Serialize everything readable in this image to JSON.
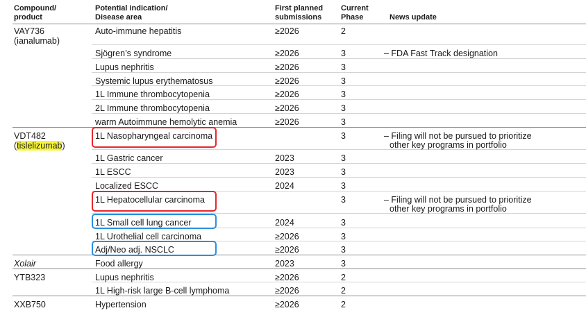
{
  "header": {
    "col1": [
      "Compound/",
      "product"
    ],
    "col2": [
      "Potential indication/",
      "Disease area"
    ],
    "col3": [
      "First planned",
      "submissions"
    ],
    "col4": [
      "Current",
      "Phase"
    ],
    "col5": "News update"
  },
  "rows": [
    {
      "compound": [
        "VAY736",
        "(ianalumab)"
      ],
      "indication": "Auto-immune hepatitis",
      "submission": "≥2026",
      "phase": "2",
      "news": []
    },
    {
      "indication": "Sjögren’s syndrome",
      "submission": "≥2026",
      "phase": "3",
      "news": [
        "– FDA Fast Track designation"
      ]
    },
    {
      "indication": "Lupus nephritis",
      "submission": "≥2026",
      "phase": "3",
      "news": []
    },
    {
      "indication": "Systemic lupus erythematosus",
      "submission": "≥2026",
      "phase": "3",
      "news": []
    },
    {
      "indication": "1L Immune thrombocytopenia",
      "submission": "≥2026",
      "phase": "3",
      "news": []
    },
    {
      "indication": "2L Immune thrombocytopenia",
      "submission": "≥2026",
      "phase": "3",
      "news": []
    },
    {
      "indication": "warm Autoimmune hemolytic anemia",
      "submission": "≥2026",
      "phase": "3",
      "news": []
    },
    {
      "compound": [
        "VDT482",
        "(tislelizumab)"
      ],
      "indication": "1L Nasopharyngeal carcinoma",
      "submission": "",
      "phase": "3",
      "news": [
        "– Filing will not be pursued to prioritize",
        "other key programs in portfolio"
      ]
    },
    {
      "indication": "1L Gastric cancer",
      "submission": "2023",
      "phase": "3",
      "news": []
    },
    {
      "indication": "1L ESCC",
      "submission": "2023",
      "phase": "3",
      "news": []
    },
    {
      "indication": "Localized ESCC",
      "submission": "2024",
      "phase": "3",
      "news": []
    },
    {
      "indication": "1L Hepatocellular carcinoma",
      "submission": "",
      "phase": "3",
      "news": [
        "– Filing will not be pursued to prioritize",
        "other key programs in portfolio"
      ]
    },
    {
      "indication": "1L Small cell lung cancer",
      "submission": "2024",
      "phase": "3",
      "news": []
    },
    {
      "indication": "1L Urothelial cell carcinoma",
      "submission": "≥2026",
      "phase": "3",
      "news": []
    },
    {
      "indication": "Adj/Neo adj. NSCLC",
      "submission": "≥2026",
      "phase": "3",
      "news": []
    },
    {
      "compound": [
        "Xolair"
      ],
      "compound_italic": true,
      "indication": "Food allergy",
      "submission": "2023",
      "phase": "3",
      "news": []
    },
    {
      "compound": [
        "YTB323"
      ],
      "indication": "Lupus nephritis",
      "submission": "≥2026",
      "phase": "2",
      "news": []
    },
    {
      "indication": "1L High-risk large B-cell lymphoma",
      "submission": "≥2026",
      "phase": "2",
      "news": []
    },
    {
      "compound": [
        "XXB750"
      ],
      "indication": "Hypertension",
      "submission": "≥2026",
      "phase": "2",
      "news": []
    }
  ],
  "highlights": {
    "compound_color": "#f6f33a",
    "red_color": "#e8262b",
    "blue_color": "#2a8fe0"
  }
}
